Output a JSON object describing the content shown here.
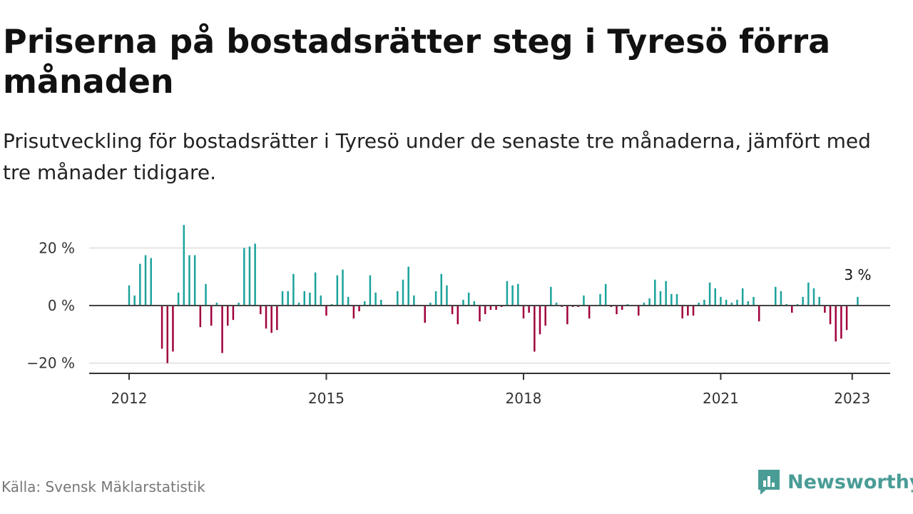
{
  "title": "Priserna på bostadsrätter steg i Tyresö förra månaden",
  "subtitle": "Prisutveckling för bostadsrätter i Tyresö under de senaste tre månaderna, jämfört med tre månader tidigare.",
  "source": "Källa: Svensk Mäklarstatistik",
  "brand": {
    "name": "Newsworthy",
    "icon": "newsworthy-logo-icon",
    "color": "#4a9c96"
  },
  "chart_data": {
    "type": "bar",
    "x_start": "2012-01",
    "x_end": "2023-01",
    "ylim": [
      -24,
      30
    ],
    "y_ticks": [
      {
        "value": 20,
        "label": "20 %"
      },
      {
        "value": 0,
        "label": "0 %"
      },
      {
        "value": -20,
        "label": "−20 %"
      }
    ],
    "x_ticks": [
      {
        "year": 2012,
        "label": "2012"
      },
      {
        "year": 2015,
        "label": "2015"
      },
      {
        "year": 2018,
        "label": "2018"
      },
      {
        "year": 2021,
        "label": "2021"
      },
      {
        "year": 2023,
        "label": "2023"
      }
    ],
    "colors": {
      "positive": "#1ba39c",
      "negative": "#a0003c",
      "zero_line": "#444444",
      "grid": "#dddddd"
    },
    "grid": true,
    "annotation": {
      "label": "3 %",
      "target": "last"
    },
    "values": [
      7,
      3.5,
      14.5,
      17.5,
      16.5,
      0,
      -15,
      -20,
      -16,
      4.5,
      28,
      17.5,
      17.5,
      -7.5,
      7.5,
      -7,
      1,
      -16.5,
      -7,
      -5,
      1,
      20,
      20.5,
      21.5,
      -3,
      -8,
      -9.5,
      -8.5,
      5,
      5,
      11,
      1,
      5,
      4.5,
      11.5,
      3.5,
      -3.5,
      0.5,
      10.5,
      12.5,
      3,
      -4.5,
      -2,
      1.5,
      10.5,
      4.5,
      2,
      0,
      0,
      5,
      9,
      13.5,
      3.5,
      0,
      -6,
      1,
      5,
      11,
      7,
      -3,
      -6.5,
      2,
      4.5,
      1.5,
      -5.5,
      -3,
      -1.5,
      -1.5,
      -0.5,
      8.5,
      7,
      7.5,
      -4.5,
      -2.5,
      -16,
      -10,
      -7,
      6.5,
      1,
      -0.5,
      -6.5,
      -0.5,
      -0.5,
      3.5,
      -4.5,
      0,
      4,
      7.5,
      -0.5,
      -3,
      -1.5,
      0.5,
      0,
      -3.5,
      1,
      2.5,
      9,
      5,
      8.5,
      4,
      4,
      -4.5,
      -3.5,
      -3.5,
      1,
      2,
      8,
      6,
      3,
      2,
      1,
      2,
      6,
      1.5,
      3,
      -5.5,
      0,
      0,
      6.5,
      5,
      0.5,
      -2.5,
      0.5,
      3,
      8,
      6,
      3,
      -2.5,
      -6.5,
      -12.5,
      -11.5,
      -8.5,
      0,
      3
    ]
  }
}
